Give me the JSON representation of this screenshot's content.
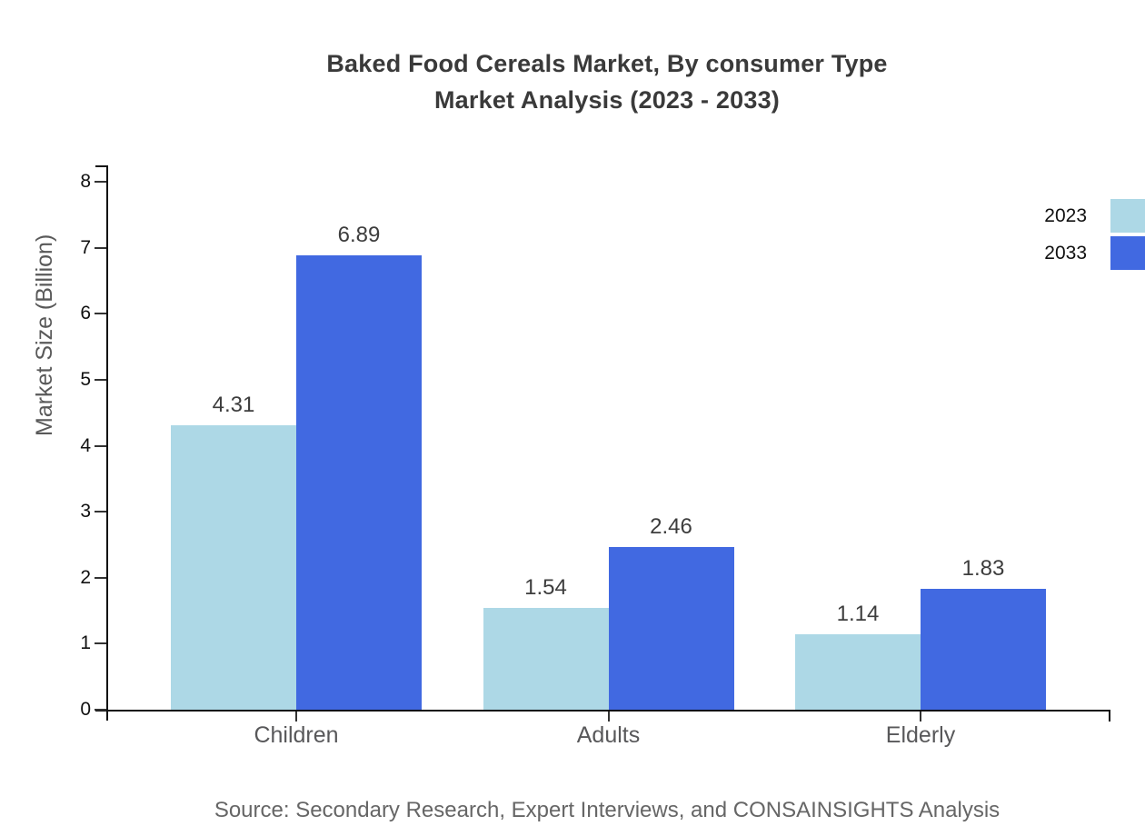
{
  "title": {
    "line1": "Baked Food Cereals Market, By consumer Type",
    "line2": "Market Analysis (2023 - 2033)"
  },
  "source_note": "Source: Secondary Research, Expert Interviews, and CONSAINSIGHTS Analysis",
  "chart_data": {
    "type": "bar",
    "title": "Baked Food Cereals Market, By consumer Type Market Analysis (2023 - 2033)",
    "categories": [
      "Children",
      "Adults",
      "Elderly"
    ],
    "series": [
      {
        "name": "2023",
        "color": "#add8e6",
        "values": [
          4.31,
          1.54,
          1.14
        ]
      },
      {
        "name": "2033",
        "color": "#4169e1",
        "values": [
          6.89,
          2.46,
          1.83
        ]
      }
    ],
    "xlabel": "",
    "ylabel": "Market Size (Billion)",
    "ylim": [
      0,
      8
    ],
    "yticks": [
      0,
      1,
      2,
      3,
      4,
      5,
      6,
      7,
      8
    ],
    "grid": false,
    "legend_position": "top-right",
    "value_labels_decimals": 2
  },
  "colors": {
    "background": "#ffffff",
    "axis": "#111111",
    "tick": "#333333",
    "title_text": "#3a3a3a",
    "value_text": "#3d3d3d",
    "category_text": "#58585a",
    "source_text": "#666666",
    "series_2023": "#add8e6",
    "series_2033": "#4169e1"
  }
}
